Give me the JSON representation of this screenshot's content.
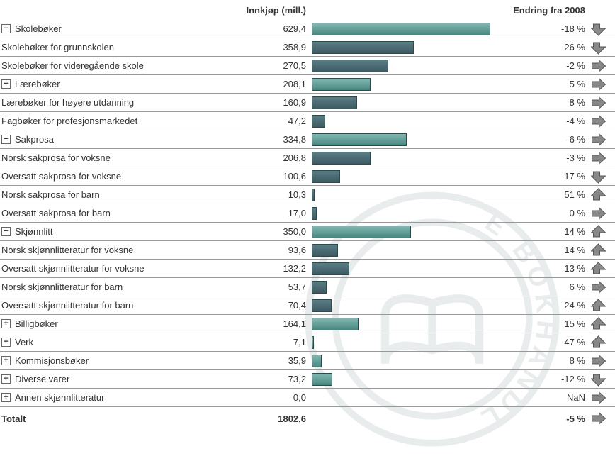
{
  "headers": {
    "value": "Innkjøp (mill.)",
    "change": "Endring fra 2008"
  },
  "colors": {
    "bar_parent_start": "#7fb8b0",
    "bar_parent_end": "#4a8680",
    "bar_child_start": "#5a7d85",
    "bar_child_end": "#3d5a62",
    "bar_border": "#2c4a4a",
    "row_border": "#999999",
    "arrow_fill": "#888888",
    "arrow_border": "#555555",
    "text": "#333333",
    "background": "#ffffff"
  },
  "max_value": 700,
  "font_size": 13,
  "rows": [
    {
      "label": "Skolebøker",
      "value": "629,4",
      "num": 629.4,
      "change": "-18 %",
      "dir": "down",
      "level": 0,
      "expand": "minus"
    },
    {
      "label": "Skolebøker for grunnskolen",
      "value": "358,9",
      "num": 358.9,
      "change": "-26 %",
      "dir": "down",
      "level": 1
    },
    {
      "label": "Skolebøker for videregående skole",
      "value": "270,5",
      "num": 270.5,
      "change": "-2 %",
      "dir": "flat",
      "level": 1
    },
    {
      "label": "Lærebøker",
      "value": "208,1",
      "num": 208.1,
      "change": "5 %",
      "dir": "flat",
      "level": 0,
      "expand": "minus"
    },
    {
      "label": "Lærebøker for høyere utdanning",
      "value": "160,9",
      "num": 160.9,
      "change": "8 %",
      "dir": "flat",
      "level": 1
    },
    {
      "label": "Fagbøker for profesjonsmarkedet",
      "value": "47,2",
      "num": 47.2,
      "change": "-4 %",
      "dir": "flat",
      "level": 1
    },
    {
      "label": "Sakprosa",
      "value": "334,8",
      "num": 334.8,
      "change": "-6 %",
      "dir": "flat",
      "level": 0,
      "expand": "minus"
    },
    {
      "label": "Norsk sakprosa for voksne",
      "value": "206,8",
      "num": 206.8,
      "change": "-3 %",
      "dir": "flat",
      "level": 1
    },
    {
      "label": "Oversatt sakprosa for voksne",
      "value": "100,6",
      "num": 100.6,
      "change": "-17 %",
      "dir": "down",
      "level": 1
    },
    {
      "label": "Norsk sakprosa for barn",
      "value": "10,3",
      "num": 10.3,
      "change": "51 %",
      "dir": "up",
      "level": 1
    },
    {
      "label": "Oversatt sakprosa for barn",
      "value": "17,0",
      "num": 17.0,
      "change": "0 %",
      "dir": "flat",
      "level": 1
    },
    {
      "label": "Skjønnlitt",
      "value": "350,0",
      "num": 350.0,
      "change": "14 %",
      "dir": "up",
      "level": 0,
      "expand": "minus"
    },
    {
      "label": "Norsk skjønnlitteratur for voksne",
      "value": "93,6",
      "num": 93.6,
      "change": "14 %",
      "dir": "up",
      "level": 1
    },
    {
      "label": "Oversatt skjønnlitteratur for voksne",
      "value": "132,2",
      "num": 132.2,
      "change": "13 %",
      "dir": "up",
      "level": 1
    },
    {
      "label": "Norsk skjønnlitteratur for barn",
      "value": "53,7",
      "num": 53.7,
      "change": "6 %",
      "dir": "flat",
      "level": 1
    },
    {
      "label": "Oversatt skjønnlitteratur for barn",
      "value": "70,4",
      "num": 70.4,
      "change": "24 %",
      "dir": "up",
      "level": 1
    },
    {
      "label": "Billigbøker",
      "value": "164,1",
      "num": 164.1,
      "change": "15 %",
      "dir": "up",
      "level": 0,
      "expand": "plus"
    },
    {
      "label": "Verk",
      "value": "7,1",
      "num": 7.1,
      "change": "47 %",
      "dir": "up",
      "level": 0,
      "expand": "plus"
    },
    {
      "label": "Kommisjonsbøker",
      "value": "35,9",
      "num": 35.9,
      "change": "8 %",
      "dir": "flat",
      "level": 0,
      "expand": "plus"
    },
    {
      "label": "Diverse varer",
      "value": "73,2",
      "num": 73.2,
      "change": "-12 %",
      "dir": "down",
      "level": 0,
      "expand": "plus"
    },
    {
      "label": "Annen skjønnlitteratur",
      "value": "0,0",
      "num": 0.0,
      "change": "NaN",
      "dir": "flat",
      "level": 0,
      "expand": "plus"
    }
  ],
  "total": {
    "label": "Totalt",
    "value": "1802,6",
    "change": "-5 %",
    "dir": "flat"
  }
}
